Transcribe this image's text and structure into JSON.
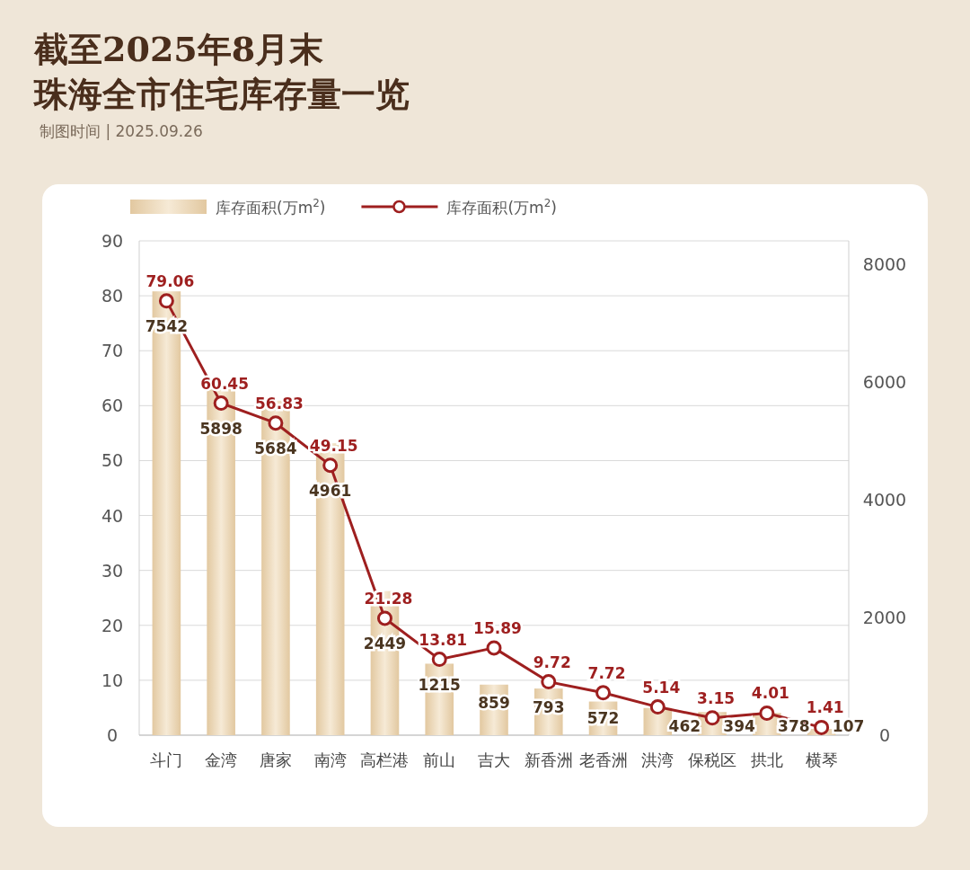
{
  "chart_data": {
    "type": "bar",
    "title": "截至2025年8月末",
    "subtitle": "珠海全市住宅库存量一览",
    "annotations": [
      "制图时间 | 2025.09.26"
    ],
    "categories": [
      "斗门",
      "金湾",
      "唐家",
      "南湾",
      "高栏港",
      "前山",
      "吉大",
      "新香洲",
      "老香洲",
      "洪湾",
      "保税区",
      "拱北",
      "横琴"
    ],
    "series": [
      {
        "name": "库存面积(万m$^{2}$)",
        "axis": "y2",
        "color": "#e2c8a0",
        "values": [
          7542,
          5898,
          5684,
          4961,
          2449,
          1215,
          859,
          793,
          572,
          462,
          394,
          378,
          107
        ]
      },
      {
        "name": "库存面积(万m$^{2}$)",
        "type": "line",
        "axis": "y",
        "color": "#9e1f1f",
        "values": [
          79.06,
          60.45,
          56.83,
          49.15,
          21.28,
          13.81,
          15.89,
          9.72,
          7.72,
          5.14,
          3.15,
          4.01,
          1.41
        ]
      }
    ],
    "ylim": [
      0,
      90
    ],
    "yticks": [
      0,
      10,
      20,
      30,
      40,
      50,
      60,
      70,
      80,
      90
    ],
    "y2lim": [
      0,
      8400
    ],
    "y2ticks": [
      0,
      2000,
      4000,
      6000,
      8000
    ],
    "grid": "y",
    "legend": "top",
    "marker": "circle",
    "line_style": "solid",
    "data_labels": true
  }
}
